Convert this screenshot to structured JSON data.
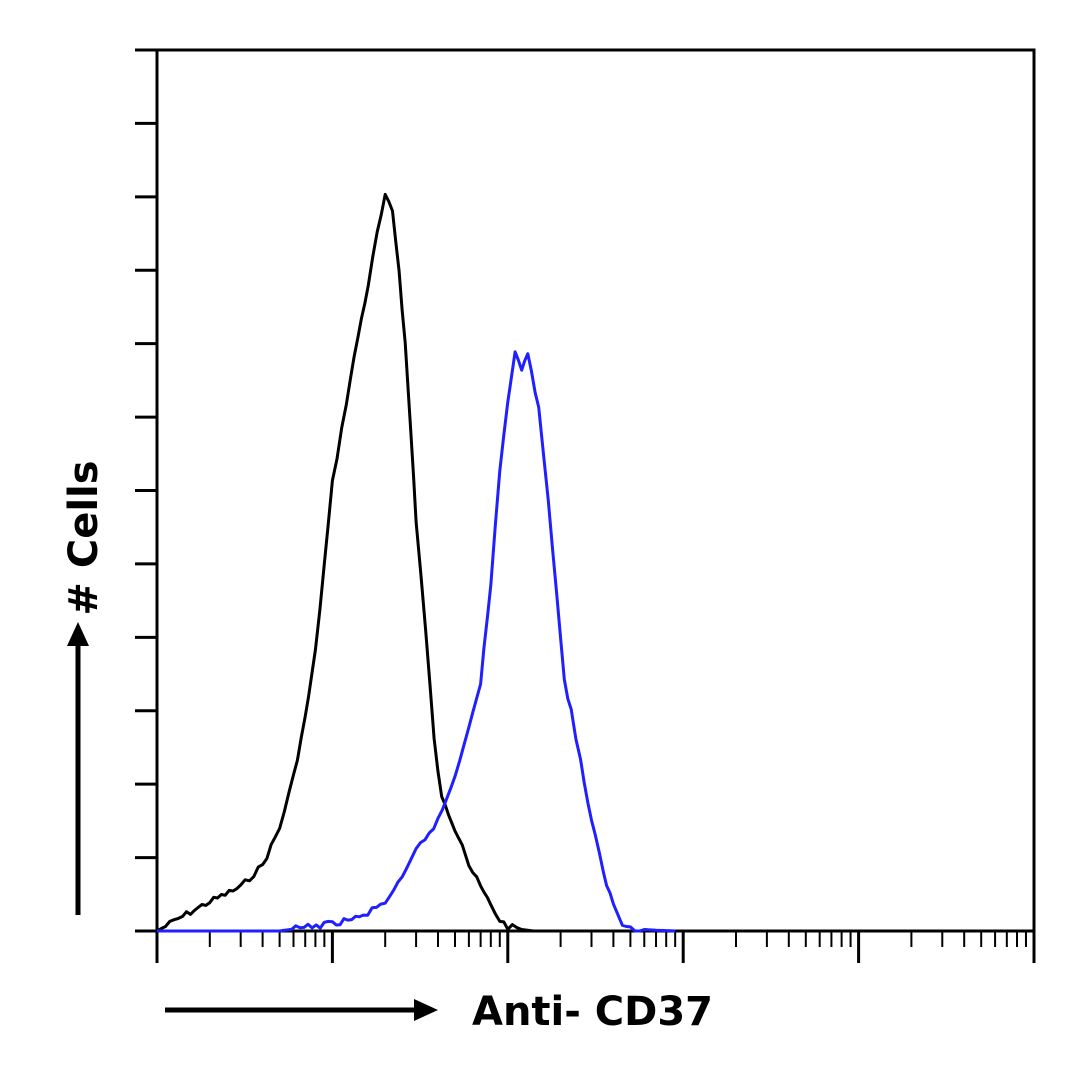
{
  "chart_data": {
    "type": "line",
    "title": "",
    "xlabel": "Anti- CD37",
    "ylabel": "# Cells",
    "x_scale": "log",
    "xlim": [
      1,
      100000
    ],
    "ylim": [
      0,
      12
    ],
    "y_tick_count": 13,
    "grid": false,
    "series": [
      {
        "color": "#000000",
        "x": [
          1,
          1.4,
          2,
          3,
          4,
          5,
          6,
          7,
          8,
          9,
          10,
          12,
          14,
          16,
          18,
          20,
          22,
          24,
          26,
          28,
          30,
          34,
          38,
          42,
          46,
          50,
          55,
          60,
          70,
          80,
          90,
          100,
          120,
          140
        ],
        "y": [
          0,
          0.2,
          0.4,
          0.6,
          0.9,
          1.4,
          2.1,
          2.9,
          3.8,
          5.0,
          6.1,
          7.2,
          8.1,
          8.8,
          9.5,
          10.0,
          9.8,
          9.0,
          8.0,
          6.8,
          5.6,
          4.1,
          2.6,
          1.8,
          1.6,
          1.4,
          1.2,
          0.9,
          0.6,
          0.35,
          0.15,
          0.06,
          0.02,
          0
        ]
      },
      {
        "color": "#1f1fff",
        "x": [
          1,
          5,
          10,
          15,
          20,
          25,
          30,
          40,
          50,
          60,
          70,
          80,
          90,
          100,
          110,
          120,
          130,
          150,
          170,
          190,
          210,
          230,
          260,
          300,
          350,
          400,
          450,
          500,
          600,
          700,
          800,
          900
        ],
        "y": [
          0,
          0,
          0.1,
          0.2,
          0.4,
          0.7,
          1.1,
          1.5,
          2.1,
          2.8,
          3.4,
          4.7,
          6.3,
          7.2,
          7.9,
          7.6,
          7.9,
          7.1,
          5.9,
          4.6,
          3.4,
          3.0,
          2.3,
          1.5,
          0.8,
          0.35,
          0.1,
          0.05,
          0.02,
          0.01,
          0.005,
          0
        ]
      }
    ]
  }
}
